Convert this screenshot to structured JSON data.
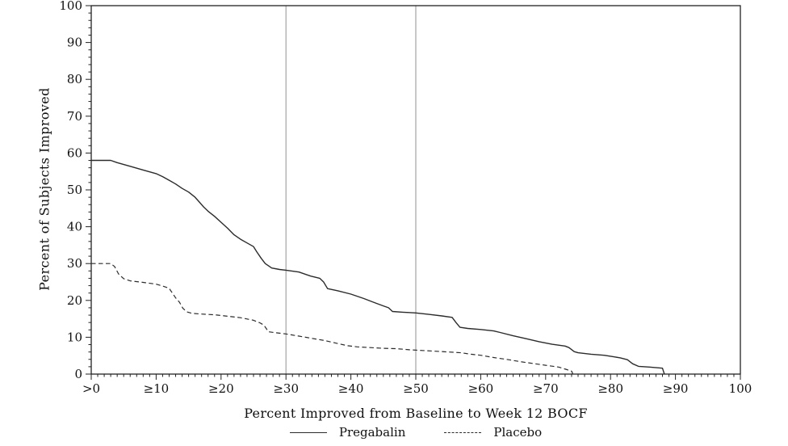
{
  "chart_data": {
    "type": "line",
    "title": "",
    "xlabel": "Percent Improved from Baseline to Week 12 BOCF",
    "ylabel": "Percent of Subjects Improved",
    "xlim": [
      0,
      100
    ],
    "ylim": [
      0,
      100
    ],
    "x_tick_values": [
      0,
      10,
      20,
      30,
      40,
      50,
      60,
      70,
      80,
      90,
      100
    ],
    "x_tick_labels": [
      ">0",
      "≥10",
      "≥20",
      "≥30",
      "≥40",
      "≥50",
      "≥60",
      "≥70",
      "≥80",
      "≥90",
      "100"
    ],
    "y_tick_values": [
      0,
      10,
      20,
      30,
      40,
      50,
      60,
      70,
      80,
      90,
      100
    ],
    "y_tick_labels": [
      "0",
      "10",
      "20",
      "30",
      "40",
      "50",
      "60",
      "70",
      "80",
      "90",
      "100"
    ],
    "x_minor_step": 1,
    "y_minor_step": 2,
    "reference_lines_x": [
      30,
      50
    ],
    "grid": "off",
    "legend_position": "bottom",
    "colors": {
      "line": "#2b2b2b",
      "frame": "#222222",
      "reference": "#a3a3a3",
      "text": "#111111",
      "background": "#ffffff"
    },
    "series": [
      {
        "name": "Pregabalin",
        "style": "solid",
        "points": [
          [
            0,
            58
          ],
          [
            3,
            58
          ],
          [
            4,
            57.4
          ],
          [
            6,
            56.4
          ],
          [
            8,
            55.4
          ],
          [
            10,
            54.4
          ],
          [
            11,
            53.6
          ],
          [
            12,
            52.6
          ],
          [
            13,
            51.6
          ],
          [
            14,
            50.4
          ],
          [
            15,
            49.4
          ],
          [
            16,
            48
          ],
          [
            16.6,
            46.8
          ],
          [
            17.3,
            45.4
          ],
          [
            18,
            44.2
          ],
          [
            19,
            42.8
          ],
          [
            20,
            41.2
          ],
          [
            21,
            39.6
          ],
          [
            22,
            37.8
          ],
          [
            23,
            36.6
          ],
          [
            24,
            35.6
          ],
          [
            25,
            34.6
          ],
          [
            25.5,
            33.2
          ],
          [
            26.2,
            31.4
          ],
          [
            26.8,
            30
          ],
          [
            27.8,
            28.8
          ],
          [
            29,
            28.4
          ],
          [
            30,
            28.2
          ],
          [
            32,
            27.7
          ],
          [
            33.8,
            26.6
          ],
          [
            35.2,
            26
          ],
          [
            35.8,
            25
          ],
          [
            36.4,
            23.2
          ],
          [
            38,
            22.6
          ],
          [
            40,
            21.7
          ],
          [
            42,
            20.5
          ],
          [
            43.5,
            19.5
          ],
          [
            45,
            18.5
          ],
          [
            45.8,
            18
          ],
          [
            46.4,
            17
          ],
          [
            48,
            16.8
          ],
          [
            50,
            16.6
          ],
          [
            52,
            16.2
          ],
          [
            54,
            15.8
          ],
          [
            55.6,
            15.4
          ],
          [
            56.2,
            14
          ],
          [
            56.8,
            12.7
          ],
          [
            58,
            12.4
          ],
          [
            60,
            12.1
          ],
          [
            62,
            11.7
          ],
          [
            63,
            11.3
          ],
          [
            65,
            10.4
          ],
          [
            67,
            9.6
          ],
          [
            69,
            8.8
          ],
          [
            71,
            8.1
          ],
          [
            73,
            7.6
          ],
          [
            73.6,
            7.2
          ],
          [
            74.4,
            6.1
          ],
          [
            75,
            5.8
          ],
          [
            77,
            5.4
          ],
          [
            79,
            5.1
          ],
          [
            80.5,
            4.7
          ],
          [
            81.5,
            4.4
          ],
          [
            82.6,
            3.9
          ],
          [
            83.4,
            2.8
          ],
          [
            84.3,
            2.1
          ],
          [
            86,
            1.9
          ],
          [
            88,
            1.6
          ],
          [
            88.3,
            0
          ]
        ]
      },
      {
        "name": "Placebo",
        "style": "dashed",
        "points": [
          [
            0,
            30
          ],
          [
            3,
            30
          ],
          [
            3.6,
            29.2
          ],
          [
            4.2,
            27.2
          ],
          [
            5,
            25.9
          ],
          [
            6,
            25.3
          ],
          [
            8,
            24.9
          ],
          [
            10,
            24.4
          ],
          [
            11,
            23.9
          ],
          [
            12,
            23.3
          ],
          [
            12.5,
            22
          ],
          [
            13,
            20.7
          ],
          [
            13.6,
            19.5
          ],
          [
            14.1,
            17.9
          ],
          [
            14.7,
            16.9
          ],
          [
            15.5,
            16.5
          ],
          [
            17,
            16.3
          ],
          [
            19,
            16.1
          ],
          [
            21,
            15.7
          ],
          [
            23,
            15.3
          ],
          [
            25,
            14.6
          ],
          [
            26,
            13.9
          ],
          [
            26.6,
            13.3
          ],
          [
            27.3,
            11.5
          ],
          [
            28.5,
            11.2
          ],
          [
            30,
            10.9
          ],
          [
            32,
            10.3
          ],
          [
            34,
            9.7
          ],
          [
            36,
            9.1
          ],
          [
            38,
            8.3
          ],
          [
            39.5,
            7.7
          ],
          [
            41,
            7.4
          ],
          [
            43,
            7.2
          ],
          [
            45,
            7
          ],
          [
            47,
            6.9
          ],
          [
            49,
            6.6
          ],
          [
            51,
            6.4
          ],
          [
            53,
            6.2
          ],
          [
            55,
            6
          ],
          [
            57,
            5.8
          ],
          [
            58.5,
            5.4
          ],
          [
            60,
            5.1
          ],
          [
            62,
            4.5
          ],
          [
            64,
            4
          ],
          [
            66,
            3.4
          ],
          [
            68,
            2.9
          ],
          [
            70,
            2.4
          ],
          [
            72,
            1.9
          ],
          [
            73.3,
            1.2
          ],
          [
            74,
            0.8
          ],
          [
            74.2,
            0
          ]
        ]
      }
    ]
  }
}
